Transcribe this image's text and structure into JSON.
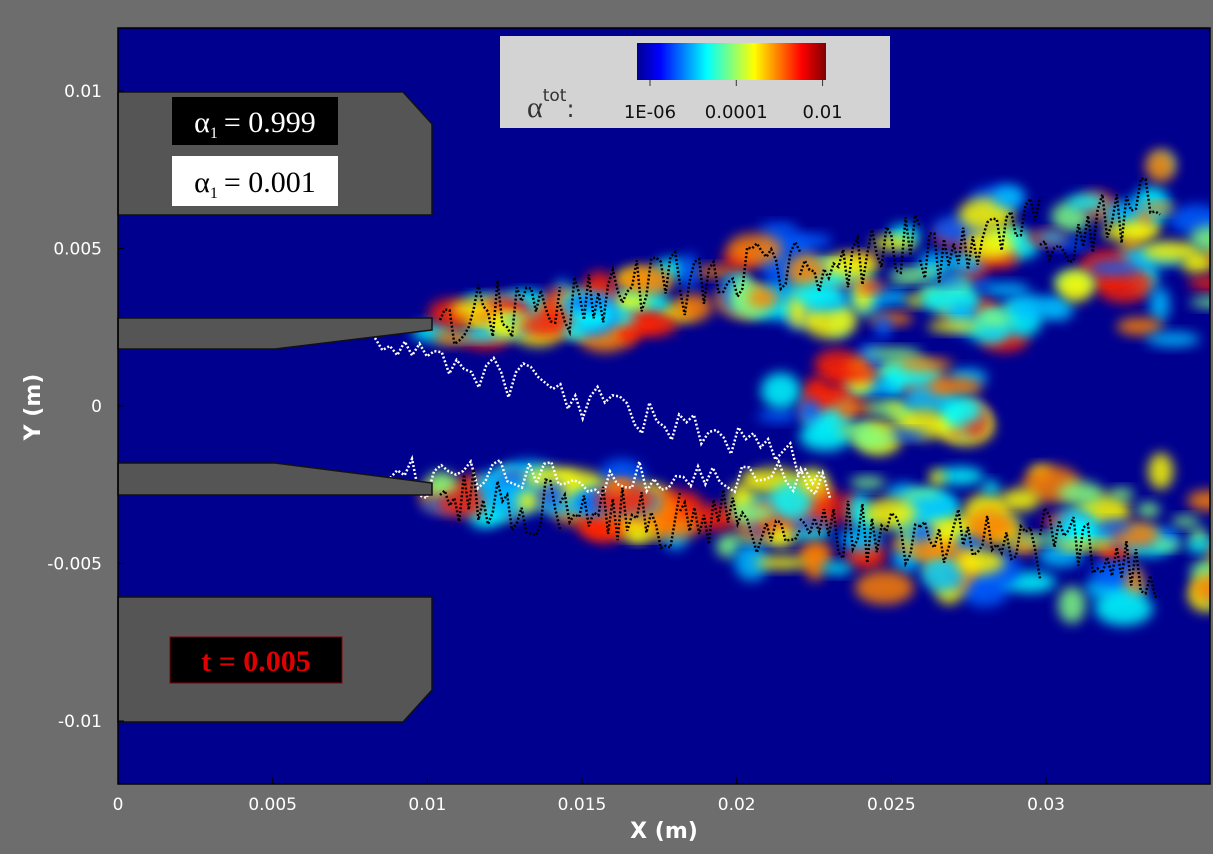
{
  "chart_data": {
    "type": "contour",
    "xlabel": "X (m)",
    "ylabel": "Y (m)",
    "xlim": [
      0,
      0.0353
    ],
    "ylim": [
      -0.012,
      0.012
    ],
    "xticks": [
      0,
      0.005,
      0.01,
      0.015,
      0.02,
      0.025,
      0.03
    ],
    "yticks": [
      -0.01,
      -0.005,
      0,
      0.005,
      0.01
    ],
    "colorbar": {
      "label": "α",
      "label_sup": "tot",
      "label_suffix": ":",
      "scale": "log",
      "clim": [
        5e-07,
        0.012
      ],
      "colormap": "jet",
      "ticks": [
        {
          "value": 1e-06,
          "label": "1E-06"
        },
        0.0001,
        0.01
      ]
    },
    "annotations": [
      {
        "symbol": "α",
        "sub": "1",
        "text": "= 0.999",
        "color": "#ffffff",
        "background": "#000000"
      },
      {
        "symbol": "α",
        "sub": "1",
        "text": "= 0.001",
        "color": "#000000",
        "background": "#ffffff"
      },
      {
        "text": "t = 0.005",
        "color": "#e00000",
        "background": "#000000"
      }
    ]
  }
}
